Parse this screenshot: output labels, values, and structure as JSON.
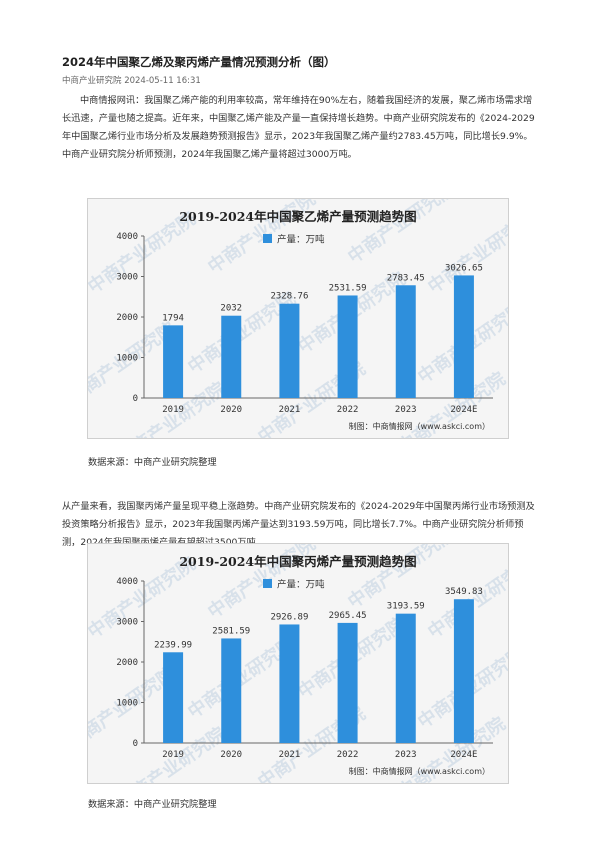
{
  "article": {
    "title": "2024年中国聚乙烯及聚丙烯产量情况预测分析（图）",
    "meta": "中商产业研究院 2024-05-11 16:31",
    "para1": "中商情报网讯：我国聚乙烯产能的利用率较高，常年维持在90%左右，随着我国经济的发展，聚乙烯市场需求增长迅速，产量也随之提高。近年来，中国聚乙烯产能及产量一直保持增长趋势。中商产业研究院发布的《2024-2029年中国聚乙烯行业市场分析及发展趋势预测报告》显示，2023年我国聚乙烯产量约2783.45万吨，同比增长9.9%。中商产业研究院分析师预测，2024年我国聚乙烯产量将超过3000万吨。",
    "source1": "数据来源：中商产业研究院整理",
    "para2": "从产量来看，我国聚丙烯产量呈现平稳上涨趋势。中商产业研究院发布的《2024-2029年中国聚丙烯行业市场预测及投资策略分析报告》显示，2023年我国聚丙烯产量达到3193.59万吨，同比增长7.7%。中商产业研究院分析师预测，2024年我国聚丙烯产量有望超过3500万吨。",
    "source2": "数据来源：中商产业研究院整理"
  },
  "watermark": "中商产业研究院",
  "chart_data": [
    {
      "type": "bar",
      "title": "2019-2024年中国聚乙烯产量预测趋势图",
      "legend": "产量：万吨",
      "legend_position": "top-center",
      "categories": [
        "2019",
        "2020",
        "2021",
        "2022",
        "2023",
        "2024E"
      ],
      "values": [
        1794,
        2032,
        2328.76,
        2531.59,
        2783.45,
        3026.65
      ],
      "value_labels": [
        "1794",
        "2032",
        "2328.76",
        "2531.59",
        "2783.45",
        "3026.65"
      ],
      "yticks": [
        "0",
        "1000",
        "2000",
        "3000",
        "4000"
      ],
      "ylim": [
        0,
        4000
      ],
      "color": "#2e8fdc",
      "credit": "制图：中商情报网（www.askci.com）",
      "grid": false
    },
    {
      "type": "bar",
      "title": "2019-2024年中国聚丙烯产量预测趋势图",
      "legend": "产量：万吨",
      "legend_position": "top-center",
      "categories": [
        "2019",
        "2020",
        "2021",
        "2022",
        "2023",
        "2024E"
      ],
      "values": [
        2239.99,
        2581.59,
        2926.89,
        2965.45,
        3193.59,
        3549.83
      ],
      "value_labels": [
        "2239.99",
        "2581.59",
        "2926.89",
        "2965.45",
        "3193.59",
        "3549.83"
      ],
      "yticks": [
        "0",
        "1000",
        "2000",
        "3000",
        "4000"
      ],
      "ylim": [
        0,
        4000
      ],
      "color": "#2e8fdc",
      "credit": "制图：中商情报网（www.askci.com）",
      "grid": false
    }
  ]
}
